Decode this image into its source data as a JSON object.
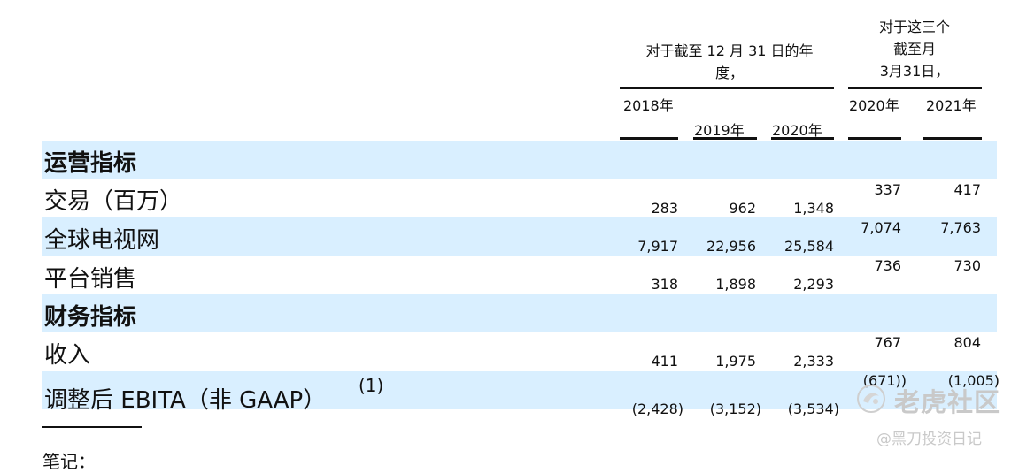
{
  "header": {
    "annual_group": "对于截至 12 月 31 日的年",
    "annual_group_cont": "度，",
    "quarter_group": [
      "对于这三个",
      "截至月",
      "3月31日，"
    ],
    "years": [
      "2018年",
      "2019年",
      "2020年",
      "2020年",
      "2021年"
    ]
  },
  "rows": [
    {
      "label": "运营指标",
      "section": true,
      "values": []
    },
    {
      "label": "交易（百万）",
      "section": false,
      "values": [
        "283",
        "962",
        "1,348",
        "337",
        "417"
      ]
    },
    {
      "label": "全球电视网",
      "section": false,
      "values": [
        "7,917",
        "22,956",
        "25,584",
        "7,074",
        "7,763"
      ]
    },
    {
      "label": "平台销售",
      "section": false,
      "values": [
        "318",
        "1,898",
        "2,293",
        "736",
        "730"
      ]
    },
    {
      "label": "财务指标",
      "section": true,
      "values": []
    },
    {
      "label": "收入",
      "section": false,
      "values": [
        "411",
        "1,975",
        "2,333",
        "767",
        "804"
      ]
    },
    {
      "label": "调整后 EBITA（非 GAAP）",
      "section": false,
      "values": [
        "(2,428)",
        "(3,152)",
        "(3,534)",
        "(671))",
        "(1,005)"
      ]
    }
  ],
  "footnote_marker": "(1)",
  "notes_heading": "笔记：",
  "watermark": {
    "brand": "老虎社区",
    "handle": "@黑刀投资日记"
  }
}
